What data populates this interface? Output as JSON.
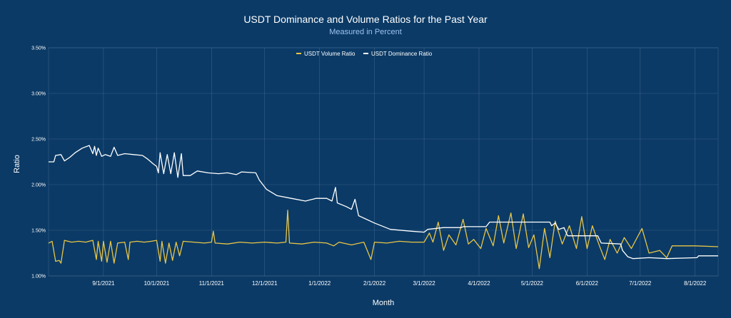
{
  "chart_data": {
    "type": "line",
    "title": "USDT Dominance and Volume Ratios for the Past Year",
    "subtitle": "Measured in Percent",
    "xlabel": "Month",
    "ylabel": "Ratio",
    "x_range": [
      "2021-08-01",
      "2022-08-14"
    ],
    "ylim": [
      1.0,
      3.5
    ],
    "y_ticks": [
      "1.00%",
      "1.50%",
      "2.00%",
      "2.50%",
      "3.00%",
      "3.50%"
    ],
    "x_ticks": [
      {
        "date": "2021-09-01",
        "label": "9/1/2021"
      },
      {
        "date": "2021-10-01",
        "label": "10/1/2021"
      },
      {
        "date": "2021-11-01",
        "label": "11/1/2021"
      },
      {
        "date": "2021-12-01",
        "label": "12/1/2021"
      },
      {
        "date": "2022-01-01",
        "label": "1/1/2022"
      },
      {
        "date": "2022-02-01",
        "label": "2/1/2022"
      },
      {
        "date": "2022-03-01",
        "label": "3/1/2022"
      },
      {
        "date": "2022-04-01",
        "label": "4/1/2022"
      },
      {
        "date": "2022-05-01",
        "label": "5/1/2022"
      },
      {
        "date": "2022-06-01",
        "label": "6/1/2022"
      },
      {
        "date": "2022-07-01",
        "label": "7/1/2022"
      },
      {
        "date": "2022-08-01",
        "label": "8/1/2022"
      }
    ],
    "grid": true,
    "legend_position": "top-center",
    "series": [
      {
        "name": "USDT Volume Ratio",
        "color": "#e8c547",
        "points": [
          [
            "2021-08-01",
            1.36
          ],
          [
            "2021-08-03",
            1.38
          ],
          [
            "2021-08-05",
            1.16
          ],
          [
            "2021-08-07",
            1.17
          ],
          [
            "2021-08-08",
            1.14
          ],
          [
            "2021-08-10",
            1.39
          ],
          [
            "2021-08-14",
            1.37
          ],
          [
            "2021-08-18",
            1.38
          ],
          [
            "2021-08-22",
            1.37
          ],
          [
            "2021-08-26",
            1.39
          ],
          [
            "2021-08-28",
            1.18
          ],
          [
            "2021-08-29",
            1.38
          ],
          [
            "2021-08-31",
            1.16
          ],
          [
            "2021-09-01",
            1.38
          ],
          [
            "2021-09-03",
            1.15
          ],
          [
            "2021-09-05",
            1.38
          ],
          [
            "2021-09-07",
            1.14
          ],
          [
            "2021-09-09",
            1.36
          ],
          [
            "2021-09-13",
            1.37
          ],
          [
            "2021-09-15",
            1.18
          ],
          [
            "2021-09-16",
            1.37
          ],
          [
            "2021-09-20",
            1.38
          ],
          [
            "2021-09-24",
            1.37
          ],
          [
            "2021-09-28",
            1.38
          ],
          [
            "2021-10-01",
            1.39
          ],
          [
            "2021-10-03",
            1.16
          ],
          [
            "2021-10-04",
            1.38
          ],
          [
            "2021-10-06",
            1.14
          ],
          [
            "2021-10-08",
            1.36
          ],
          [
            "2021-10-10",
            1.17
          ],
          [
            "2021-10-12",
            1.37
          ],
          [
            "2021-10-14",
            1.22
          ],
          [
            "2021-10-16",
            1.38
          ],
          [
            "2021-10-22",
            1.37
          ],
          [
            "2021-10-28",
            1.36
          ],
          [
            "2021-11-01",
            1.37
          ],
          [
            "2021-11-02",
            1.49
          ],
          [
            "2021-11-03",
            1.36
          ],
          [
            "2021-11-10",
            1.35
          ],
          [
            "2021-11-17",
            1.37
          ],
          [
            "2021-11-24",
            1.36
          ],
          [
            "2021-12-01",
            1.37
          ],
          [
            "2021-12-08",
            1.36
          ],
          [
            "2021-12-13",
            1.37
          ],
          [
            "2021-12-14",
            1.72
          ],
          [
            "2021-12-15",
            1.36
          ],
          [
            "2021-12-22",
            1.35
          ],
          [
            "2021-12-29",
            1.37
          ],
          [
            "2022-01-05",
            1.36
          ],
          [
            "2022-01-09",
            1.33
          ],
          [
            "2022-01-12",
            1.37
          ],
          [
            "2022-01-19",
            1.34
          ],
          [
            "2022-01-26",
            1.37
          ],
          [
            "2022-01-30",
            1.18
          ],
          [
            "2022-02-01",
            1.37
          ],
          [
            "2022-02-08",
            1.36
          ],
          [
            "2022-02-15",
            1.38
          ],
          [
            "2022-02-22",
            1.37
          ],
          [
            "2022-03-01",
            1.37
          ],
          [
            "2022-03-04",
            1.47
          ],
          [
            "2022-03-06",
            1.37
          ],
          [
            "2022-03-09",
            1.59
          ],
          [
            "2022-03-12",
            1.28
          ],
          [
            "2022-03-15",
            1.45
          ],
          [
            "2022-03-19",
            1.34
          ],
          [
            "2022-03-23",
            1.62
          ],
          [
            "2022-03-26",
            1.35
          ],
          [
            "2022-03-29",
            1.4
          ],
          [
            "2022-04-02",
            1.3
          ],
          [
            "2022-04-05",
            1.52
          ],
          [
            "2022-04-09",
            1.33
          ],
          [
            "2022-04-12",
            1.66
          ],
          [
            "2022-04-15",
            1.36
          ],
          [
            "2022-04-19",
            1.69
          ],
          [
            "2022-04-22",
            1.3
          ],
          [
            "2022-04-26",
            1.68
          ],
          [
            "2022-04-29",
            1.31
          ],
          [
            "2022-05-02",
            1.45
          ],
          [
            "2022-05-05",
            1.08
          ],
          [
            "2022-05-08",
            1.52
          ],
          [
            "2022-05-11",
            1.2
          ],
          [
            "2022-05-14",
            1.6
          ],
          [
            "2022-05-18",
            1.35
          ],
          [
            "2022-05-22",
            1.55
          ],
          [
            "2022-05-26",
            1.3
          ],
          [
            "2022-05-29",
            1.65
          ],
          [
            "2022-06-01",
            1.3
          ],
          [
            "2022-06-04",
            1.55
          ],
          [
            "2022-06-08",
            1.33
          ],
          [
            "2022-06-11",
            1.18
          ],
          [
            "2022-06-14",
            1.4
          ],
          [
            "2022-06-18",
            1.25
          ],
          [
            "2022-06-22",
            1.42
          ],
          [
            "2022-06-26",
            1.3
          ],
          [
            "2022-07-02",
            1.52
          ],
          [
            "2022-07-06",
            1.25
          ],
          [
            "2022-07-12",
            1.28
          ],
          [
            "2022-07-16",
            1.2
          ],
          [
            "2022-07-19",
            1.33
          ],
          [
            "2022-08-01",
            1.33
          ],
          [
            "2022-08-14",
            1.32
          ]
        ]
      },
      {
        "name": "USDT Dominance Ratio",
        "color": "#ffffff",
        "points": [
          [
            "2021-08-01",
            2.25
          ],
          [
            "2021-08-04",
            2.25
          ],
          [
            "2021-08-05",
            2.32
          ],
          [
            "2021-08-08",
            2.33
          ],
          [
            "2021-08-10",
            2.26
          ],
          [
            "2021-08-13",
            2.3
          ],
          [
            "2021-08-16",
            2.35
          ],
          [
            "2021-08-20",
            2.4
          ],
          [
            "2021-08-24",
            2.43
          ],
          [
            "2021-08-26",
            2.34
          ],
          [
            "2021-08-27",
            2.42
          ],
          [
            "2021-08-28",
            2.32
          ],
          [
            "2021-08-29",
            2.4
          ],
          [
            "2021-08-31",
            2.31
          ],
          [
            "2021-09-02",
            2.33
          ],
          [
            "2021-09-05",
            2.31
          ],
          [
            "2021-09-07",
            2.41
          ],
          [
            "2021-09-09",
            2.32
          ],
          [
            "2021-09-13",
            2.34
          ],
          [
            "2021-09-18",
            2.33
          ],
          [
            "2021-09-23",
            2.32
          ],
          [
            "2021-09-26",
            2.28
          ],
          [
            "2021-09-29",
            2.23
          ],
          [
            "2021-10-01",
            2.2
          ],
          [
            "2021-10-02",
            2.13
          ],
          [
            "2021-10-03",
            2.35
          ],
          [
            "2021-10-05",
            2.12
          ],
          [
            "2021-10-07",
            2.33
          ],
          [
            "2021-10-09",
            2.12
          ],
          [
            "2021-10-11",
            2.35
          ],
          [
            "2021-10-13",
            2.08
          ],
          [
            "2021-10-15",
            2.34
          ],
          [
            "2021-10-16",
            2.1
          ],
          [
            "2021-10-20",
            2.1
          ],
          [
            "2021-10-24",
            2.15
          ],
          [
            "2021-10-30",
            2.13
          ],
          [
            "2021-11-05",
            2.12
          ],
          [
            "2021-11-10",
            2.13
          ],
          [
            "2021-11-15",
            2.11
          ],
          [
            "2021-11-18",
            2.14
          ],
          [
            "2021-11-26",
            2.13
          ],
          [
            "2021-11-28",
            2.05
          ],
          [
            "2021-12-02",
            1.95
          ],
          [
            "2021-12-08",
            1.88
          ],
          [
            "2021-12-16",
            1.85
          ],
          [
            "2021-12-24",
            1.82
          ],
          [
            "2021-12-30",
            1.85
          ],
          [
            "2022-01-05",
            1.85
          ],
          [
            "2022-01-08",
            1.82
          ],
          [
            "2022-01-10",
            1.97
          ],
          [
            "2022-01-11",
            1.8
          ],
          [
            "2022-01-16",
            1.76
          ],
          [
            "2022-01-19",
            1.73
          ],
          [
            "2022-01-21",
            1.84
          ],
          [
            "2022-01-23",
            1.66
          ],
          [
            "2022-02-01",
            1.58
          ],
          [
            "2022-02-10",
            1.51
          ],
          [
            "2022-02-22",
            1.49
          ],
          [
            "2022-03-01",
            1.48
          ],
          [
            "2022-03-03",
            1.51
          ],
          [
            "2022-03-12",
            1.53
          ],
          [
            "2022-03-22",
            1.53
          ],
          [
            "2022-03-23",
            1.54
          ],
          [
            "2022-04-05",
            1.54
          ],
          [
            "2022-04-07",
            1.59
          ],
          [
            "2022-05-11",
            1.59
          ],
          [
            "2022-05-12",
            1.55
          ],
          [
            "2022-05-14",
            1.58
          ],
          [
            "2022-05-16",
            1.51
          ],
          [
            "2022-05-19",
            1.53
          ],
          [
            "2022-05-21",
            1.44
          ],
          [
            "2022-06-07",
            1.44
          ],
          [
            "2022-06-09",
            1.36
          ],
          [
            "2022-06-20",
            1.35
          ],
          [
            "2022-06-21",
            1.28
          ],
          [
            "2022-06-24",
            1.21
          ],
          [
            "2022-06-27",
            1.19
          ],
          [
            "2022-07-06",
            1.2
          ],
          [
            "2022-07-16",
            1.19
          ],
          [
            "2022-08-02",
            1.2
          ],
          [
            "2022-08-03",
            1.22
          ],
          [
            "2022-08-14",
            1.22
          ]
        ]
      }
    ]
  }
}
